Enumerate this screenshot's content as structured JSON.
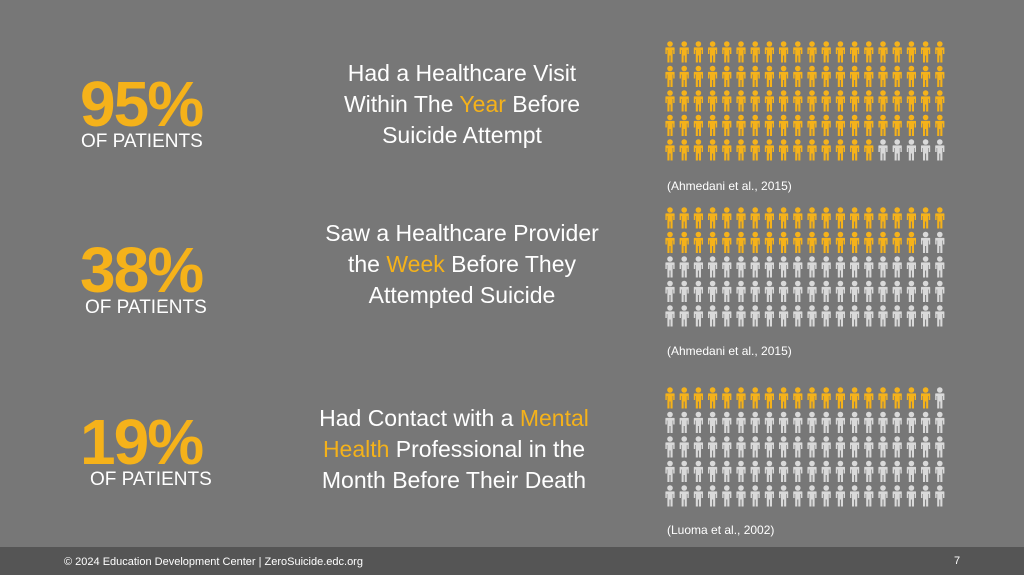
{
  "colors": {
    "background": "#777777",
    "accent": "#F5B21A",
    "person_filled": "#F5B21A",
    "person_empty": "#D9D9D9",
    "footer": "#555555"
  },
  "icon": "person-icon",
  "stats": [
    {
      "percent": "95%",
      "label": "OF PATIENTS",
      "desc_lines": [
        [
          {
            "t": "Had a Healthcare Visit",
            "hl": false
          }
        ],
        [
          {
            "t": "Within The ",
            "hl": false
          },
          {
            "t": "Year",
            "hl": true
          },
          {
            "t": " Before",
            "hl": false
          }
        ],
        [
          {
            "t": "Suicide Attempt",
            "hl": false
          }
        ]
      ],
      "filled_count": 95,
      "total": 100,
      "citation": "(Ahmedani et al., 2015)"
    },
    {
      "percent": "38%",
      "label": "OF PATIENTS",
      "desc_lines": [
        [
          {
            "t": "Saw a Healthcare Provider",
            "hl": false
          }
        ],
        [
          {
            "t": "the ",
            "hl": false
          },
          {
            "t": "Week",
            "hl": true
          },
          {
            "t": " Before They",
            "hl": false
          }
        ],
        [
          {
            "t": "Attempted Suicide",
            "hl": false
          }
        ]
      ],
      "filled_count": 38,
      "total": 100,
      "citation": "(Ahmedani et al., 2015)"
    },
    {
      "percent": "19%",
      "label": "OF PATIENTS",
      "desc_lines": [
        [
          {
            "t": "Had Contact with a ",
            "hl": false
          },
          {
            "t": "Mental",
            "hl": true
          }
        ],
        [
          {
            "t": "Health",
            "hl": true
          },
          {
            "t": " Professional in the",
            "hl": false
          }
        ],
        [
          {
            "t": "Month Before Their Death",
            "hl": false
          }
        ]
      ],
      "filled_count": 19,
      "total": 100,
      "citation": "(Luoma et al., 2002)"
    }
  ],
  "footer": {
    "text": "© 2024 Education Development Center | ZeroSuicide.edc.org",
    "page": "7"
  }
}
